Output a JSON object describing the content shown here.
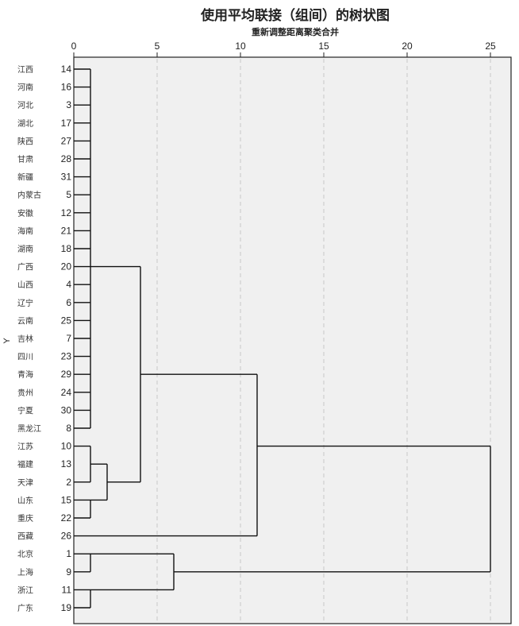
{
  "chart_data": {
    "type": "dendrogram",
    "title": "使用平均联接（组间）的树状图",
    "xlabel": "重新调整距离聚类合并",
    "ylabel": "Y",
    "xlim": [
      0,
      25
    ],
    "xticks": [
      0,
      5,
      10,
      15,
      20,
      25
    ],
    "grid": "vertical dashed",
    "leaves": [
      {
        "name": "江西",
        "id": "14"
      },
      {
        "name": "河南",
        "id": "16"
      },
      {
        "name": "河北",
        "id": "3"
      },
      {
        "name": "湖北",
        "id": "17"
      },
      {
        "name": "陕西",
        "id": "27"
      },
      {
        "name": "甘肃",
        "id": "28"
      },
      {
        "name": "新疆",
        "id": "31"
      },
      {
        "name": "内蒙古",
        "id": "5"
      },
      {
        "name": "安徽",
        "id": "12"
      },
      {
        "name": "海南",
        "id": "21"
      },
      {
        "name": "湖南",
        "id": "18"
      },
      {
        "name": "广西",
        "id": "20"
      },
      {
        "name": "山西",
        "id": "4"
      },
      {
        "name": "辽宁",
        "id": "6"
      },
      {
        "name": "云南",
        "id": "25"
      },
      {
        "name": "吉林",
        "id": "7"
      },
      {
        "name": "四川",
        "id": "23"
      },
      {
        "name": "青海",
        "id": "29"
      },
      {
        "name": "贵州",
        "id": "24"
      },
      {
        "name": "宁夏",
        "id": "30"
      },
      {
        "name": "黑龙江",
        "id": "8"
      },
      {
        "name": "江苏",
        "id": "10"
      },
      {
        "name": "福建",
        "id": "13"
      },
      {
        "name": "天津",
        "id": "2"
      },
      {
        "name": "山东",
        "id": "15"
      },
      {
        "name": "重庆",
        "id": "22"
      },
      {
        "name": "西藏",
        "id": "26"
      },
      {
        "name": "北京",
        "id": "1"
      },
      {
        "name": "上海",
        "id": "9"
      },
      {
        "name": "浙江",
        "id": "11"
      },
      {
        "name": "广东",
        "id": "19"
      }
    ],
    "merges": [
      {
        "from_rows": [
          0,
          20
        ],
        "members_rows": "0-20",
        "height": 1,
        "out_row": 11
      },
      {
        "from_rows": [
          21,
          23
        ],
        "height": 1,
        "out_row": 22
      },
      {
        "from_rows": [
          24,
          25
        ],
        "height": 1,
        "out_row": 24
      },
      {
        "from_rows": [
          22,
          24
        ],
        "height": 2,
        "out_row": 23
      },
      {
        "from_rows": [
          11,
          23
        ],
        "height": 4,
        "out_row": 17
      },
      {
        "from_rows": [
          17,
          26
        ],
        "height": 11,
        "out_row": 21
      },
      {
        "from_rows": [
          27,
          28
        ],
        "height": 1,
        "out_row": 27
      },
      {
        "from_rows": [
          29,
          30
        ],
        "height": 1,
        "out_row": 29
      },
      {
        "from_rows": [
          27,
          29
        ],
        "height": 6,
        "out_row": 28
      },
      {
        "from_rows": [
          21,
          28
        ],
        "height": 25,
        "out_row": 24.5
      }
    ]
  }
}
